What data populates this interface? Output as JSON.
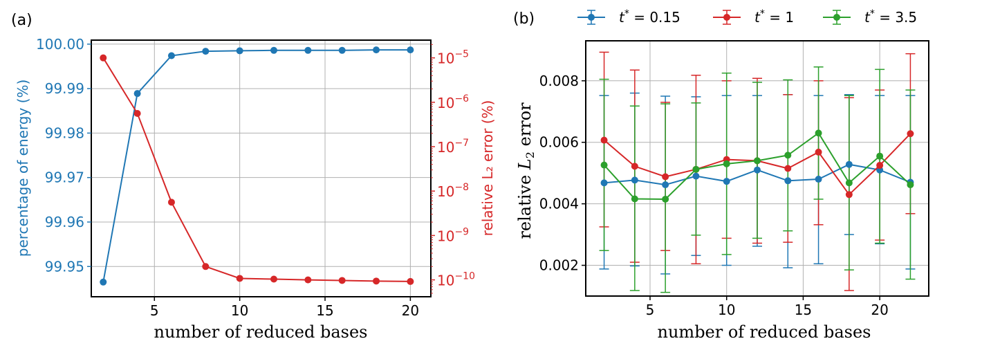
{
  "colors": {
    "blue": "#1f77b4",
    "red": "#d62728",
    "green": "#2ca02c"
  },
  "chart_data": [
    {
      "type": "line",
      "panel_label": "(a)",
      "xlabel": "number of reduced bases",
      "ylabel_left": "percentage of energy (%)",
      "ylabel_right": "relative L₂ error (%)",
      "xlim": [
        1.3,
        21.2
      ],
      "xticks": [
        5,
        10,
        15,
        20
      ],
      "x_tick_labels": [
        "5",
        "10",
        "15",
        "20"
      ],
      "ylim_left": [
        99.9432,
        100.0009
      ],
      "yticks_left": [
        99.95,
        99.96,
        99.97,
        99.98,
        99.99,
        100.0
      ],
      "y_tick_labels_left": [
        "99.95",
        "99.96",
        "99.97",
        "99.98",
        "99.99",
        "100.00"
      ],
      "ylim_right_log10": [
        -10.38,
        -4.6
      ],
      "yticks_right_exp": [
        -10,
        -9,
        -8,
        -7,
        -6,
        -5
      ],
      "y_tick_labels_right": [
        {
          "base": "10",
          "exp": "−10"
        },
        {
          "base": "10",
          "exp": "−9"
        },
        {
          "base": "10",
          "exp": "−8"
        },
        {
          "base": "10",
          "exp": "−7"
        },
        {
          "base": "10",
          "exp": "−6"
        },
        {
          "base": "10",
          "exp": "−5"
        }
      ],
      "x": [
        2,
        4,
        6,
        8,
        10,
        12,
        14,
        16,
        18,
        20
      ],
      "series": [
        {
          "name": "percentage of energy",
          "axis": "left",
          "color": "#1f77b4",
          "values": [
            99.9465,
            99.9889,
            99.9974,
            99.9984,
            99.9985,
            99.9986,
            99.9986,
            99.9986,
            99.9987,
            99.9987
          ]
        },
        {
          "name": "relative L2 error",
          "axis": "right",
          "color": "#d62728",
          "values": [
            1e-05,
            5.6e-07,
            5.6e-09,
            2e-10,
            1.08e-10,
            1.04e-10,
            1e-10,
            9.7e-11,
            9.4e-11,
            9.2e-11
          ]
        }
      ]
    },
    {
      "type": "line",
      "subtype": "errorbar",
      "panel_label": "(b)",
      "xlabel": "number of reduced bases",
      "ylabel_parts": {
        "pre": "relative ",
        "var": "L",
        "sub": "2",
        "post": " error"
      },
      "xlim": [
        0.8,
        23.2
      ],
      "xticks": [
        5,
        10,
        15,
        20
      ],
      "x_tick_labels": [
        "5",
        "10",
        "15",
        "20"
      ],
      "ylim": [
        0.001,
        0.0093
      ],
      "yticks": [
        0.002,
        0.004,
        0.006,
        0.008
      ],
      "y_tick_labels": [
        "0.002",
        "0.004",
        "0.006",
        "0.008"
      ],
      "x": [
        2,
        4,
        6,
        8,
        10,
        12,
        14,
        16,
        18,
        20,
        22
      ],
      "series": [
        {
          "name": "t* = 0.15",
          "legend_var": "t",
          "legend_sup": "*",
          "legend_value": " = 0.15",
          "color": "#1f77b4",
          "values": [
            0.00468,
            0.00477,
            0.00462,
            0.0049,
            0.00473,
            0.0051,
            0.00475,
            0.0048,
            0.00528,
            0.0051,
            0.0047
          ],
          "err_low": [
            0.00188,
            0.00198,
            0.00172,
            0.00232,
            0.002,
            0.00262,
            0.00192,
            0.00205,
            0.003,
            0.0027,
            0.00188
          ],
          "err_high": [
            0.00752,
            0.0076,
            0.0075,
            0.00748,
            0.00752,
            0.00752,
            0.00755,
            0.00752,
            0.00755,
            0.00752,
            0.00752
          ]
        },
        {
          "name": "t* = 1",
          "legend_var": "t",
          "legend_sup": "*",
          "legend_value": " = 1",
          "color": "#d62728",
          "values": [
            0.00607,
            0.00522,
            0.00488,
            0.00512,
            0.00544,
            0.0054,
            0.00515,
            0.00568,
            0.0043,
            0.00525,
            0.00628
          ],
          "err_low": [
            0.00325,
            0.0021,
            0.00248,
            0.00205,
            0.00288,
            0.00272,
            0.00275,
            0.00332,
            0.00118,
            0.00282,
            0.00368
          ],
          "err_high": [
            0.00893,
            0.00835,
            0.0073,
            0.00818,
            0.008,
            0.00808,
            0.00755,
            0.008,
            0.00745,
            0.0077,
            0.00888
          ]
        },
        {
          "name": "t* = 3.5",
          "legend_var": "t",
          "legend_sup": "*",
          "legend_value": " = 3.5",
          "color": "#2ca02c",
          "values": [
            0.00526,
            0.00416,
            0.00415,
            0.00512,
            0.0053,
            0.0054,
            0.00558,
            0.0063,
            0.00468,
            0.00555,
            0.00462
          ],
          "err_low": [
            0.00248,
            0.00118,
            0.00112,
            0.00298,
            0.00235,
            0.00288,
            0.00312,
            0.00415,
            0.00185,
            0.00272,
            0.00155
          ],
          "err_high": [
            0.00805,
            0.00718,
            0.00725,
            0.00728,
            0.00825,
            0.00795,
            0.00803,
            0.00845,
            0.00752,
            0.00837,
            0.0077
          ]
        }
      ]
    }
  ]
}
